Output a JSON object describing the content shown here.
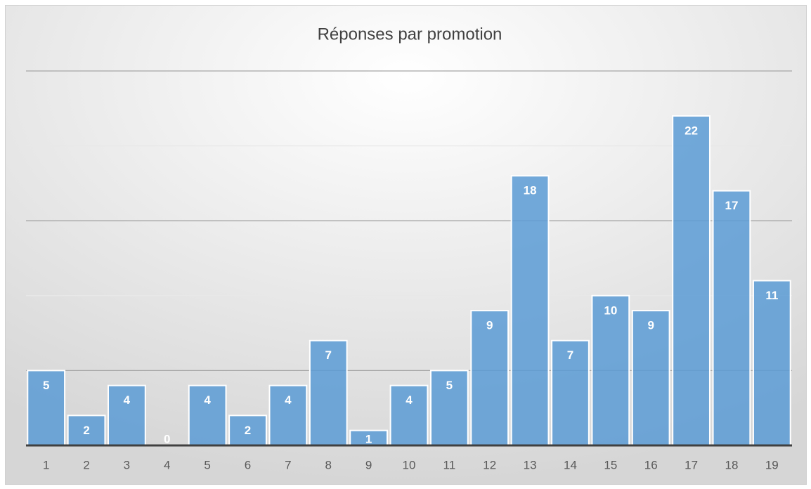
{
  "chart_data": {
    "type": "bar",
    "title": "Réponses par promotion",
    "categories": [
      "1",
      "2",
      "3",
      "4",
      "5",
      "6",
      "7",
      "8",
      "9",
      "10",
      "11",
      "12",
      "13",
      "14",
      "15",
      "16",
      "17",
      "18",
      "19"
    ],
    "values": [
      5,
      2,
      4,
      0,
      4,
      2,
      4,
      7,
      1,
      4,
      5,
      9,
      18,
      7,
      10,
      9,
      22,
      17,
      11
    ],
    "color": "#5b9bd5",
    "ylim": [
      0,
      25
    ],
    "yticks": [
      0,
      5,
      10,
      15,
      20,
      25
    ],
    "grid": true
  }
}
